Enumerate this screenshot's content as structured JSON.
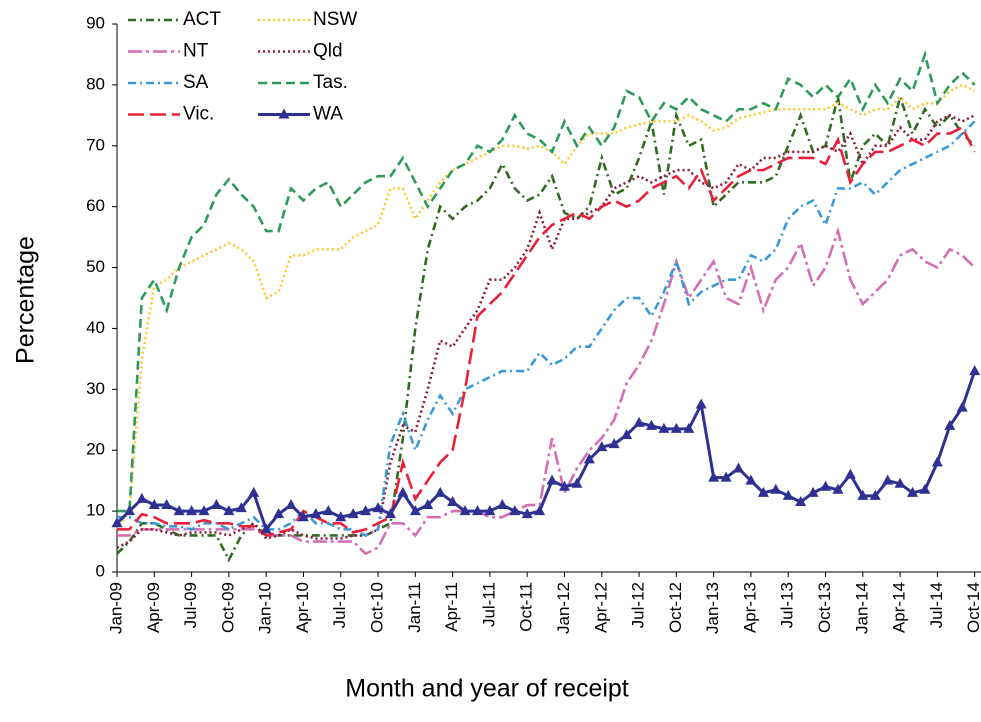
{
  "chart_data": {
    "type": "line",
    "xlabel": "Month and year of receipt",
    "ylabel": "Percentage",
    "categories": [
      "Jan-09",
      null,
      null,
      "Apr-09",
      null,
      null,
      "Jul-09",
      null,
      null,
      "Oct-09",
      null,
      null,
      "Jan-10",
      null,
      null,
      "Apr-10",
      null,
      null,
      "Jul-10",
      null,
      null,
      "Oct-10",
      null,
      null,
      "Jan-11",
      null,
      null,
      "Apr-11",
      null,
      null,
      "Jul-11",
      null,
      null,
      "Oct-11",
      null,
      null,
      "Jan-12",
      null,
      null,
      "Apr-12",
      null,
      null,
      "Jul-12",
      null,
      null,
      "Oct-12",
      null,
      null,
      "Jan-13",
      null,
      null,
      "Apr-13",
      null,
      null,
      "Jul-13",
      null,
      null,
      "Oct-13",
      null,
      null,
      "Jan-14",
      null,
      null,
      "Apr-14",
      null,
      null,
      "Jul-14",
      null,
      null,
      "Oct-14"
    ],
    "ylim": [
      0,
      90
    ],
    "yticks": [
      0,
      10,
      20,
      30,
      40,
      50,
      60,
      70,
      80,
      90
    ],
    "legend": "upper left",
    "series": [
      {
        "name": "ACT",
        "color": "#2f6b22",
        "dash": "dashdot",
        "values": [
          3,
          5,
          8,
          8,
          7,
          6,
          6,
          6,
          6,
          2,
          6,
          8,
          6,
          6,
          6,
          6,
          6,
          6,
          6,
          6,
          6,
          7,
          8,
          22,
          40,
          53,
          60,
          58,
          60,
          61,
          63,
          67,
          63,
          61,
          62,
          65,
          59,
          58,
          60,
          68,
          62,
          63,
          68,
          74,
          62,
          75,
          70,
          71,
          60,
          62,
          64,
          64,
          64,
          65,
          70,
          75,
          69,
          70,
          78,
          64,
          70,
          72,
          70,
          78,
          72,
          76,
          73,
          75,
          72,
          70
        ]
      },
      {
        "name": "NSW",
        "color": "#ffc82e",
        "dash": "dotted",
        "values": [
          7,
          10,
          35,
          47,
          48,
          50,
          51,
          52,
          53,
          54,
          53,
          51,
          45,
          46,
          52,
          52,
          53,
          53,
          53,
          55,
          56,
          57,
          63,
          63,
          58,
          61,
          64,
          66,
          67,
          68,
          69,
          70,
          70,
          69.5,
          70,
          69,
          67,
          70,
          72,
          72,
          72,
          73,
          73.5,
          74,
          74,
          74,
          75,
          74,
          72.5,
          73,
          74.5,
          75,
          75.5,
          76,
          76,
          76,
          76,
          76,
          77,
          76,
          75,
          76,
          76,
          78,
          76,
          77,
          77,
          79,
          80,
          79
        ]
      },
      {
        "name": "NT",
        "color": "#d46fb6",
        "dash": "longdashdot",
        "values": [
          6,
          6,
          7,
          7,
          7,
          7,
          7,
          7,
          7,
          7,
          7,
          7,
          6,
          6,
          6,
          5,
          5,
          5,
          5,
          5,
          3,
          4,
          8,
          8,
          6,
          9,
          9,
          10,
          10,
          10,
          9,
          9,
          10,
          11,
          11,
          22,
          13,
          17,
          20,
          22,
          25,
          31,
          34,
          38,
          44,
          51,
          45,
          48,
          51,
          45,
          44,
          50,
          43,
          48,
          50,
          54,
          47,
          50,
          56,
          48,
          44,
          46,
          48,
          52,
          53,
          51,
          50,
          53,
          52,
          50
        ]
      },
      {
        "name": "Qld",
        "color": "#8b1a3a",
        "dash": "dotted",
        "values": [
          4,
          5,
          7,
          7,
          6.5,
          6,
          6.5,
          6.5,
          6.5,
          6,
          7,
          8,
          5.5,
          6,
          7,
          6,
          5.5,
          5.5,
          5.5,
          6,
          6,
          7,
          18,
          24,
          23,
          30,
          38,
          37,
          40,
          43,
          48,
          48,
          50,
          53,
          59,
          53,
          58,
          58,
          59,
          60,
          63,
          64,
          65,
          64,
          65,
          66,
          66,
          64,
          63,
          64,
          67,
          66,
          68,
          68,
          69,
          69,
          69,
          70,
          69,
          72,
          67,
          70,
          70,
          73,
          71,
          71,
          74,
          75,
          74,
          75
        ]
      },
      {
        "name": "SA",
        "color": "#3a9ad8",
        "dash": "dashdot",
        "values": [
          9,
          9,
          8,
          8,
          7.5,
          7.5,
          7,
          8,
          8,
          7,
          8,
          9,
          7,
          7,
          8,
          10,
          8,
          8,
          7,
          7,
          6,
          7,
          21,
          26,
          20,
          25,
          29,
          26,
          30,
          31,
          32,
          33,
          33,
          33,
          36,
          34,
          35,
          37,
          37,
          40,
          43,
          45,
          45,
          42,
          46,
          51,
          44,
          46,
          47,
          48,
          48,
          52,
          51,
          53,
          58,
          60,
          61,
          57,
          63,
          63,
          64,
          62,
          64,
          66,
          67,
          68,
          69,
          70,
          72,
          74
        ]
      },
      {
        "name": "Tas.",
        "color": "#2e9a5a",
        "dash": "dashed",
        "values": [
          10,
          10,
          45,
          48,
          43,
          50,
          55,
          57,
          62,
          64.5,
          62,
          60,
          56,
          56,
          63,
          61,
          63,
          64,
          60,
          62,
          64,
          65,
          65,
          68,
          64,
          60,
          63,
          66,
          67,
          70,
          69,
          71,
          75,
          72,
          71,
          69,
          74,
          70,
          73,
          70,
          73,
          79,
          78,
          74,
          77,
          76,
          78,
          76,
          75,
          74,
          76,
          76,
          77,
          76,
          81,
          80,
          78,
          80,
          78,
          81,
          76,
          80,
          77,
          81,
          79,
          85,
          77,
          80,
          82,
          80
        ]
      },
      {
        "name": "Vic.",
        "color": "#e8203a",
        "dash": "longdashed",
        "values": [
          7,
          7,
          9.5,
          9,
          8,
          8,
          8,
          8.5,
          8,
          8,
          7.5,
          7.5,
          6,
          6.5,
          7,
          10,
          9,
          8,
          8,
          6.5,
          7,
          8,
          9,
          18,
          12,
          15,
          18,
          20,
          30,
          42,
          44,
          46,
          49,
          52,
          55,
          57,
          58,
          59,
          58,
          60,
          61,
          60,
          61,
          63,
          64,
          65,
          63,
          66,
          61,
          63,
          65,
          66,
          66,
          67,
          68,
          68,
          68,
          67,
          71,
          64,
          67,
          69,
          69,
          70,
          71,
          70,
          72,
          72,
          73,
          69
        ]
      },
      {
        "name": "WA",
        "color": "#2e3192",
        "dash": "solid",
        "marker": "triangle",
        "values": [
          8,
          10,
          12,
          11,
          11,
          10,
          10,
          10,
          11,
          10,
          10.5,
          13,
          7,
          9.5,
          11,
          9,
          9.5,
          10,
          9,
          9.5,
          10,
          10.5,
          9.5,
          13,
          10,
          11,
          13,
          11.5,
          10,
          10,
          10,
          11,
          10,
          9.5,
          10,
          15,
          14,
          14.5,
          18.5,
          20.5,
          21,
          22.5,
          24.5,
          24,
          23.5,
          23.5,
          23.5,
          27.5,
          15.5,
          15.5,
          17,
          15,
          13,
          13.5,
          12.5,
          11.5,
          13,
          14,
          13.5,
          16,
          12.5,
          12.5,
          15,
          14.5,
          13,
          13.5,
          18,
          24,
          27,
          33
        ]
      }
    ]
  }
}
